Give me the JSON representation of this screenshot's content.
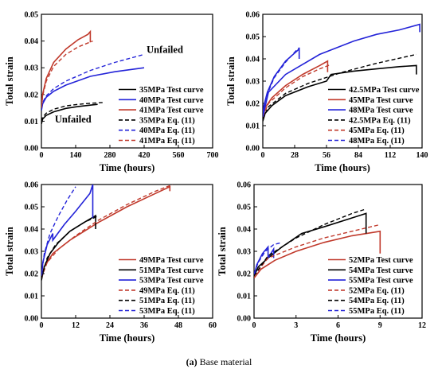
{
  "caption": {
    "tag": "(a)",
    "text": "Base material"
  },
  "colors": {
    "black": "#000000",
    "red": "#c0392b",
    "blue": "#2323d8",
    "axis": "#000000"
  },
  "chart_data": [
    {
      "type": "line",
      "xlabel": "Time (hours)",
      "ylabel": "Total strain",
      "xlim": [
        0,
        700
      ],
      "ylim": [
        0,
        0.05
      ],
      "xticks": [
        "0",
        "140",
        "280",
        "420",
        "560",
        "700"
      ],
      "yticks": [
        "0.00",
        "0.01",
        "0.02",
        "0.03",
        "0.04",
        "0.05"
      ],
      "annotations": [
        {
          "text": "Unfailed",
          "x": 430,
          "y": 0.0355
        },
        {
          "text": "Unfailed",
          "x": 55,
          "y": 0.0095
        }
      ],
      "legend": "bottom-right",
      "series": [
        {
          "name": "35MPa Test curve",
          "color": "black",
          "dash": "solid",
          "x": [
            0,
            5,
            20,
            50,
            100,
            150,
            200,
            230
          ],
          "y": [
            0.009,
            0.0108,
            0.0122,
            0.0135,
            0.0148,
            0.0155,
            0.016,
            0.0163
          ]
        },
        {
          "name": "40MPa Test curve",
          "color": "blue",
          "dash": "solid",
          "x": [
            0,
            5,
            20,
            50,
            100,
            200,
            300,
            420
          ],
          "y": [
            0.014,
            0.0165,
            0.019,
            0.0212,
            0.0235,
            0.0268,
            0.0285,
            0.03
          ]
        },
        {
          "name": "41MPa Test curve",
          "color": "red",
          "dash": "solid",
          "x": [
            0,
            5,
            20,
            50,
            100,
            150,
            190,
            200,
            200
          ],
          "y": [
            0.015,
            0.02,
            0.026,
            0.032,
            0.037,
            0.0405,
            0.0425,
            0.0435,
            0.0395
          ]
        },
        {
          "name": "35MPa Eq. (11)",
          "color": "black",
          "dash": "dash",
          "x": [
            0,
            5,
            20,
            50,
            100,
            150,
            200,
            250
          ],
          "y": [
            0.01,
            0.0115,
            0.013,
            0.0145,
            0.0157,
            0.0163,
            0.0167,
            0.017
          ]
        },
        {
          "name": "40MPa Eq. (11)",
          "color": "blue",
          "dash": "dash",
          "x": [
            0,
            5,
            20,
            50,
            100,
            200,
            300,
            420
          ],
          "y": [
            0.015,
            0.017,
            0.0195,
            0.0222,
            0.025,
            0.029,
            0.032,
            0.035
          ]
        },
        {
          "name": "41MPa Eq. (11)",
          "color": "red",
          "dash": "dash",
          "x": [
            0,
            5,
            20,
            50,
            100,
            150,
            210
          ],
          "y": [
            0.015,
            0.0195,
            0.025,
            0.0305,
            0.035,
            0.0378,
            0.04
          ]
        }
      ]
    },
    {
      "type": "line",
      "xlabel": "Time (hours)",
      "ylabel": "Total strain",
      "xlim": [
        0,
        140
      ],
      "ylim": [
        0,
        0.06
      ],
      "xticks": [
        "0",
        "28",
        "56",
        "84",
        "112",
        "140"
      ],
      "yticks": [
        "0.00",
        "0.01",
        "0.02",
        "0.03",
        "0.04",
        "0.05",
        "0.06"
      ],
      "legend": "bottom-right",
      "series": [
        {
          "name": "42.5MPa Test curve",
          "color": "black",
          "dash": "solid",
          "x": [
            0,
            2,
            8,
            20,
            40,
            56,
            60,
            80,
            100,
            120,
            135,
            135
          ],
          "y": [
            0.012,
            0.0155,
            0.019,
            0.0235,
            0.0275,
            0.03,
            0.033,
            0.0345,
            0.0355,
            0.0365,
            0.037,
            0.033
          ]
        },
        {
          "name": "45MPa Test curve",
          "color": "red",
          "dash": "solid",
          "x": [
            0,
            2,
            8,
            20,
            35,
            50,
            57,
            57
          ],
          "y": [
            0.013,
            0.018,
            0.0225,
            0.028,
            0.033,
            0.037,
            0.039,
            0.034
          ]
        },
        {
          "name": "48MPa Test curve",
          "color": "blue",
          "dash": "solid",
          "x": [
            0,
            1,
            4,
            10,
            20,
            30,
            32,
            32
          ],
          "y": [
            0.014,
            0.019,
            0.025,
            0.032,
            0.039,
            0.0435,
            0.0445,
            0.04
          ]
        },
        {
          "name": "42.5MPa Eq. (11)",
          "color": "black",
          "dash": "dash",
          "x": [
            0,
            5,
            20,
            40,
            70,
            100,
            135
          ],
          "y": [
            0.013,
            0.0185,
            0.0245,
            0.029,
            0.034,
            0.038,
            0.042
          ]
        },
        {
          "name": "45MPa Eq. (11)",
          "color": "red",
          "dash": "dash",
          "x": [
            0,
            5,
            20,
            35,
            50,
            60
          ],
          "y": [
            0.014,
            0.02,
            0.027,
            0.032,
            0.0355,
            0.0375
          ]
        },
        {
          "name": "48MPa Eq. (11)",
          "color": "blue",
          "dash": "dash",
          "x": [
            0,
            3,
            10,
            20,
            28,
            32
          ],
          "y": [
            0.015,
            0.023,
            0.0315,
            0.0385,
            0.043,
            0.045
          ]
        },
        {
          "name": "",
          "color": "blue",
          "dash": "solid",
          "x": [
            0,
            5,
            20,
            50,
            80,
            100,
            120,
            138,
            138
          ],
          "y": [
            0.014,
            0.025,
            0.033,
            0.042,
            0.048,
            0.051,
            0.053,
            0.0555,
            0.052
          ]
        }
      ]
    },
    {
      "type": "line",
      "xlabel": "Time (hours)",
      "ylabel": "Total strain",
      "xlim": [
        0,
        60
      ],
      "ylim": [
        0,
        0.06
      ],
      "xticks": [
        "0",
        "12",
        "24",
        "36",
        "48",
        "60"
      ],
      "yticks": [
        "0.00",
        "0.01",
        "0.02",
        "0.03",
        "0.04",
        "0.05",
        "0.06"
      ],
      "legend": "bottom-right",
      "series": [
        {
          "name": "49MPa Test curve",
          "color": "red",
          "dash": "solid",
          "x": [
            0,
            1,
            4,
            10,
            20,
            30,
            40,
            45,
            45
          ],
          "y": [
            0.018,
            0.023,
            0.029,
            0.035,
            0.043,
            0.05,
            0.056,
            0.059,
            0.057
          ]
        },
        {
          "name": "51MPa Test curve",
          "color": "black",
          "dash": "solid",
          "x": [
            0,
            1,
            3,
            6,
            10,
            15,
            19,
            19
          ],
          "y": [
            0.017,
            0.023,
            0.029,
            0.034,
            0.039,
            0.043,
            0.046,
            0.04
          ]
        },
        {
          "name": "53MPa Test curve",
          "color": "blue",
          "dash": "solid",
          "x": [
            0,
            0.5,
            2,
            4,
            4,
            8,
            12,
            17,
            18,
            18
          ],
          "y": [
            0.018,
            0.025,
            0.033,
            0.038,
            0.035,
            0.042,
            0.048,
            0.056,
            0.06,
            0.045
          ]
        },
        {
          "name": "49MPa Eq. (11)",
          "color": "red",
          "dash": "dash",
          "x": [
            0,
            2,
            6,
            12,
            20,
            30,
            40,
            46
          ],
          "y": [
            0.018,
            0.025,
            0.031,
            0.037,
            0.044,
            0.051,
            0.057,
            0.06
          ]
        },
        {
          "name": "51MPa Eq. (11)",
          "color": "black",
          "dash": "dash",
          "x": [
            0,
            2,
            5,
            10,
            15,
            20
          ],
          "y": [
            0.018,
            0.027,
            0.033,
            0.039,
            0.043,
            0.046
          ]
        },
        {
          "name": "53MPa Eq. (11)",
          "color": "blue",
          "dash": "dash",
          "x": [
            0,
            1,
            3,
            6,
            9,
            12
          ],
          "y": [
            0.019,
            0.029,
            0.038,
            0.046,
            0.053,
            0.059
          ]
        }
      ]
    },
    {
      "type": "line",
      "xlabel": "Time (hours)",
      "ylabel": "Total strain",
      "xlim": [
        0,
        12
      ],
      "ylim": [
        0,
        0.06
      ],
      "xticks": [
        "0",
        "3",
        "6",
        "9",
        "12"
      ],
      "yticks": [
        "0.00",
        "0.01",
        "0.02",
        "0.03",
        "0.04",
        "0.05",
        "0.06"
      ],
      "legend": "bottom-right",
      "series": [
        {
          "name": "52MPa Test curve",
          "color": "red",
          "dash": "solid",
          "x": [
            0,
            0.5,
            1.5,
            3,
            5,
            7,
            9,
            9
          ],
          "y": [
            0.018,
            0.022,
            0.026,
            0.03,
            0.034,
            0.037,
            0.039,
            0.029
          ]
        },
        {
          "name": "54MPa Test curve",
          "color": "black",
          "dash": "solid",
          "x": [
            0,
            0.3,
            1,
            2,
            3.4,
            5,
            7,
            8,
            8
          ],
          "y": [
            0.019,
            0.023,
            0.027,
            0.032,
            0.038,
            0.041,
            0.045,
            0.047,
            0.038
          ]
        },
        {
          "name": "55MPa Test curve",
          "color": "blue",
          "dash": "solid",
          "x": [
            0,
            0.2,
            0.6,
            1.0,
            1.0,
            1.4,
            1.4
          ],
          "y": [
            0.019,
            0.024,
            0.029,
            0.032,
            0.027,
            0.031,
            0.027
          ]
        },
        {
          "name": "52MPa Eq. (11)",
          "color": "red",
          "dash": "dash",
          "x": [
            0,
            1,
            3,
            5,
            7,
            9
          ],
          "y": [
            0.019,
            0.027,
            0.032,
            0.036,
            0.039,
            0.042
          ]
        },
        {
          "name": "54MPa Eq. (11)",
          "color": "black",
          "dash": "dash",
          "x": [
            0,
            1,
            3,
            5,
            7,
            8
          ],
          "y": [
            0.019,
            0.028,
            0.036,
            0.042,
            0.047,
            0.049
          ]
        },
        {
          "name": "55MPa Eq. (11)",
          "color": "blue",
          "dash": "dash",
          "x": [
            0,
            0.3,
            0.8,
            1.4,
            2
          ],
          "y": [
            0.02,
            0.025,
            0.03,
            0.033,
            0.034
          ]
        }
      ]
    }
  ]
}
